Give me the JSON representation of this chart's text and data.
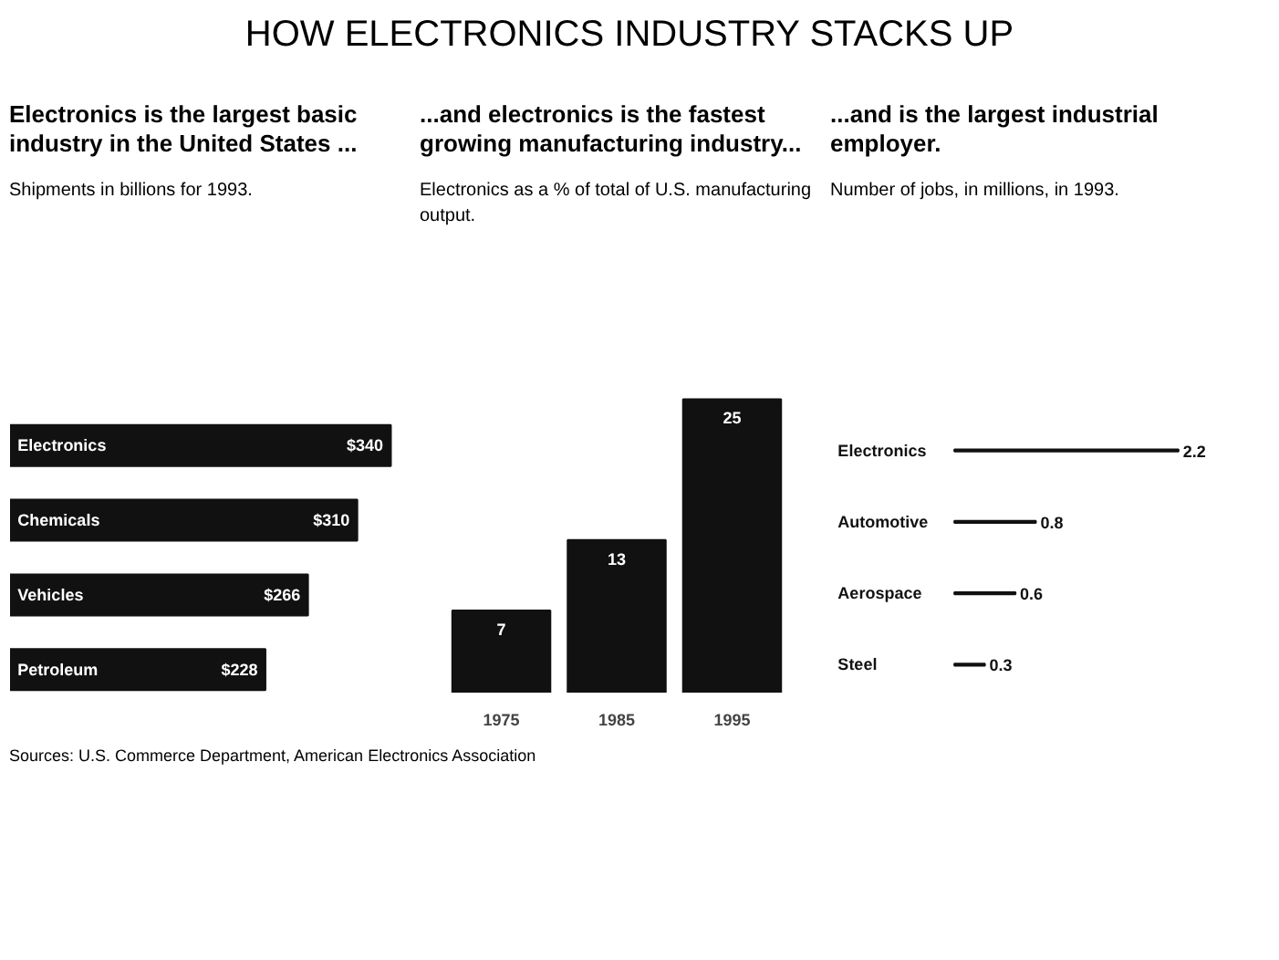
{
  "chart_data": [
    {
      "type": "other",
      "title": "HOW ELECTRONICS INDUSTRY STACKS UP",
      "annotations": [
        "Sources: U.S. Commerce Department, American Electronics Association"
      ]
    },
    {
      "type": "bar",
      "orientation": "horizontal",
      "title": "Electronics is the largest basic industry in the United States ...",
      "subtitle": "Shipments in billions for 1993.",
      "categories": [
        "Electronics",
        "Chemicals",
        "Vehicles",
        "Petroleum"
      ],
      "values": [
        340,
        310,
        266,
        228
      ],
      "value_labels": [
        "$340",
        "$310",
        "$266",
        "$228"
      ],
      "color": "#111111"
    },
    {
      "type": "bar",
      "title": "...and electronics is the fastest growing manufacturing industry...",
      "subtitle": "Electronics as a % of total of U.S. manufacturing output.",
      "categories": [
        "1975",
        "1985",
        "1995"
      ],
      "values": [
        7,
        13,
        25
      ],
      "data_labels": true,
      "color": "#111111"
    },
    {
      "type": "bar",
      "orientation": "horizontal",
      "title": "...and is the largest industrial employer.",
      "subtitle": "Number of jobs, in millions, in 1993.",
      "categories": [
        "Electronics",
        "Automotive",
        "Aerospace",
        "Steel"
      ],
      "values": [
        2.2,
        0.8,
        0.6,
        0.3
      ],
      "data_labels": true,
      "color": "#111111"
    }
  ]
}
